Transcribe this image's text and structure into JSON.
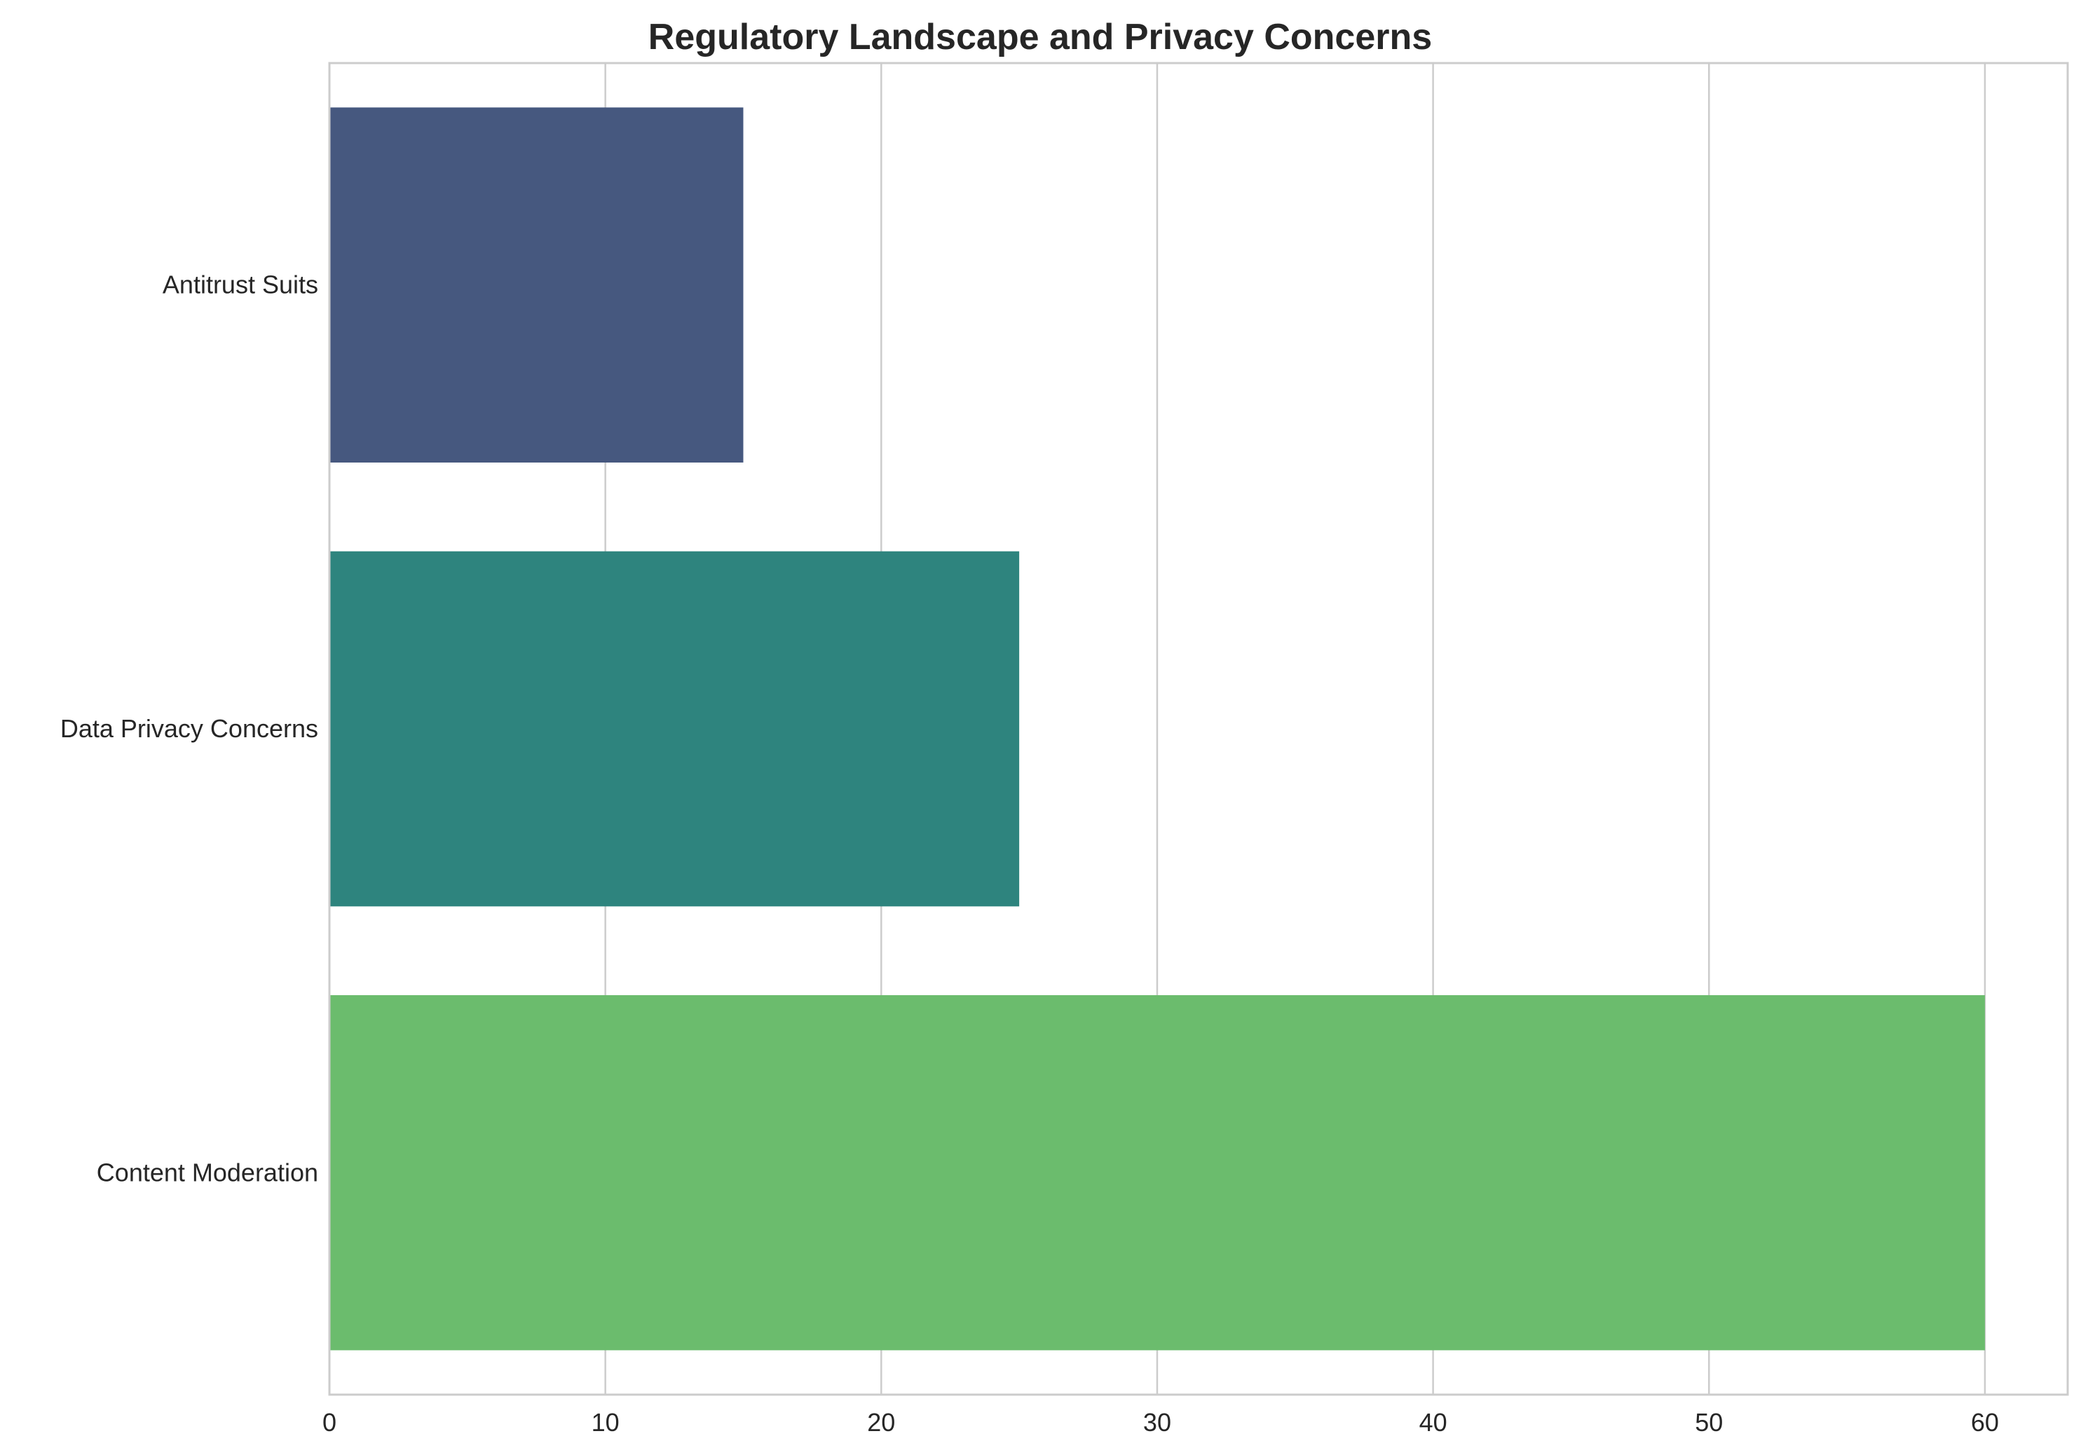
{
  "chart_data": {
    "type": "bar",
    "orientation": "horizontal",
    "title": "Regulatory Landscape and Privacy Concerns",
    "xlabel": "",
    "ylabel": "",
    "categories": [
      "Antitrust Suits",
      "Data Privacy Concerns",
      "Content Moderation"
    ],
    "values": [
      15,
      25,
      60
    ],
    "colors": [
      "#46587f",
      "#2e847e",
      "#6bbc6d"
    ],
    "xlim": [
      0,
      63
    ],
    "xticks": [
      0,
      10,
      20,
      30,
      40,
      50,
      60
    ],
    "grid": true,
    "legend": "none"
  }
}
